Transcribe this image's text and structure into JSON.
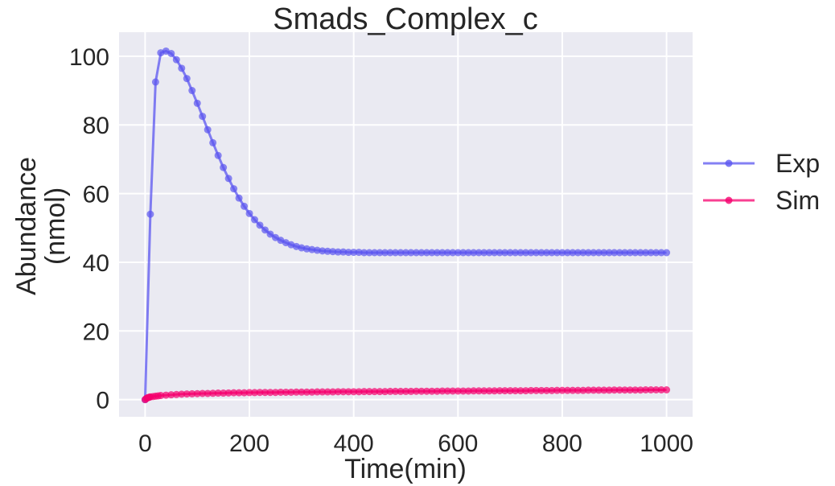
{
  "chart_data": {
    "type": "line",
    "title": "Smads_Complex_c",
    "xlabel": "Time(min)",
    "ylabel": [
      "Abundance",
      "(nmol)"
    ],
    "xlim": [
      -50,
      1050
    ],
    "ylim": [
      -5,
      107
    ],
    "xticks": [
      0,
      200,
      400,
      600,
      800,
      1000
    ],
    "yticks": [
      0,
      20,
      40,
      60,
      80,
      100
    ],
    "grid": true,
    "legend_position": "right",
    "background": "#eaeaf2",
    "series": [
      {
        "name": "Exp",
        "color": "#5b56f0",
        "marker": "circle",
        "x": [
          0,
          10,
          20,
          30,
          40,
          50,
          60,
          70,
          80,
          90,
          100,
          110,
          120,
          130,
          140,
          150,
          160,
          170,
          180,
          190,
          200,
          210,
          220,
          230,
          240,
          250,
          260,
          270,
          280,
          290,
          300,
          310,
          320,
          330,
          340,
          350,
          360,
          370,
          380,
          390,
          400,
          410,
          420,
          430,
          440,
          450,
          460,
          470,
          480,
          490,
          500,
          510,
          520,
          530,
          540,
          550,
          560,
          570,
          580,
          590,
          600,
          610,
          620,
          630,
          640,
          650,
          660,
          670,
          680,
          690,
          700,
          710,
          720,
          730,
          740,
          750,
          760,
          770,
          780,
          790,
          800,
          810,
          820,
          830,
          840,
          850,
          860,
          870,
          880,
          890,
          900,
          910,
          920,
          930,
          940,
          950,
          960,
          970,
          980,
          990,
          1000
        ],
        "y": [
          0,
          54.0,
          92.5,
          101.0,
          101.5,
          100.8,
          99.0,
          96.5,
          93.5,
          90.0,
          86.3,
          82.5,
          78.6,
          74.8,
          71.1,
          67.6,
          64.4,
          61.4,
          58.7,
          56.3,
          54.2,
          52.4,
          50.8,
          49.4,
          48.2,
          47.2,
          46.4,
          45.7,
          45.1,
          44.6,
          44.2,
          43.9,
          43.7,
          43.5,
          43.3,
          43.2,
          43.1,
          43.0,
          43.0,
          42.9,
          42.9,
          42.9,
          42.8,
          42.8,
          42.8,
          42.8,
          42.8,
          42.8,
          42.8,
          42.8,
          42.8,
          42.8,
          42.8,
          42.8,
          42.8,
          42.8,
          42.8,
          42.8,
          42.8,
          42.8,
          42.8,
          42.8,
          42.8,
          42.8,
          42.8,
          42.8,
          42.8,
          42.8,
          42.8,
          42.8,
          42.8,
          42.8,
          42.8,
          42.8,
          42.8,
          42.8,
          42.8,
          42.8,
          42.8,
          42.8,
          42.8,
          42.8,
          42.8,
          42.8,
          42.8,
          42.8,
          42.8,
          42.8,
          42.8,
          42.8,
          42.8,
          42.8,
          42.8,
          42.8,
          42.8,
          42.8,
          42.8,
          42.8,
          42.8,
          42.8,
          42.8
        ]
      },
      {
        "name": "Sim",
        "color": "#f5006e",
        "marker": "circle",
        "x": [
          0,
          2,
          4,
          6,
          8,
          10,
          15,
          20,
          25,
          30,
          40,
          50,
          60,
          70,
          80,
          90,
          100,
          110,
          120,
          130,
          140,
          150,
          160,
          170,
          180,
          190,
          200,
          210,
          220,
          230,
          240,
          250,
          260,
          270,
          280,
          290,
          300,
          310,
          320,
          330,
          340,
          350,
          360,
          370,
          380,
          390,
          400,
          410,
          420,
          430,
          440,
          450,
          460,
          470,
          480,
          490,
          500,
          510,
          520,
          530,
          540,
          550,
          560,
          570,
          580,
          590,
          600,
          610,
          620,
          630,
          640,
          650,
          660,
          670,
          680,
          690,
          700,
          710,
          720,
          730,
          740,
          750,
          760,
          770,
          780,
          790,
          800,
          810,
          820,
          830,
          840,
          850,
          860,
          870,
          880,
          890,
          900,
          910,
          920,
          930,
          940,
          950,
          960,
          970,
          980,
          990,
          1000
        ],
        "y": [
          0,
          0.3,
          0.5,
          0.6,
          0.7,
          0.8,
          0.9,
          1.0,
          1.1,
          1.2,
          1.3,
          1.4,
          1.5,
          1.6,
          1.65,
          1.7,
          1.75,
          1.8,
          1.8,
          1.85,
          1.9,
          1.9,
          1.95,
          2.0,
          2.0,
          2.0,
          2.05,
          2.05,
          2.1,
          2.1,
          2.1,
          2.1,
          2.15,
          2.15,
          2.15,
          2.2,
          2.2,
          2.2,
          2.2,
          2.25,
          2.25,
          2.25,
          2.25,
          2.3,
          2.3,
          2.3,
          2.3,
          2.3,
          2.35,
          2.35,
          2.35,
          2.35,
          2.35,
          2.4,
          2.4,
          2.4,
          2.4,
          2.4,
          2.45,
          2.45,
          2.45,
          2.45,
          2.45,
          2.5,
          2.5,
          2.5,
          2.5,
          2.5,
          2.5,
          2.55,
          2.55,
          2.55,
          2.55,
          2.55,
          2.6,
          2.6,
          2.6,
          2.6,
          2.6,
          2.6,
          2.65,
          2.65,
          2.65,
          2.65,
          2.65,
          2.7,
          2.7,
          2.7,
          2.7,
          2.7,
          2.7,
          2.75,
          2.75,
          2.75,
          2.75,
          2.75,
          2.8,
          2.8,
          2.8,
          2.8,
          2.8,
          2.8,
          2.85,
          2.85,
          2.85,
          2.85,
          2.85
        ]
      }
    ]
  }
}
